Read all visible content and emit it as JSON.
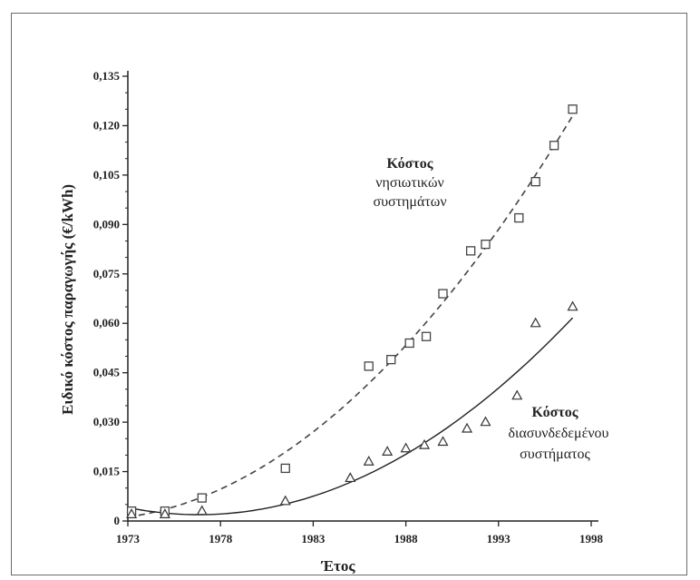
{
  "chart_data": {
    "type": "scatter",
    "xlabel": "Έτος",
    "ylabel": "Ειδικό κόστος παραγωγής (€/kWh)",
    "xlim": [
      1973,
      1998
    ],
    "ylim": [
      0,
      0.135
    ],
    "x_ticks": [
      "1973",
      "1978",
      "1983",
      "1988",
      "1993",
      "1998"
    ],
    "y_ticks": [
      "0",
      "0,015",
      "0,030",
      "0,045",
      "0,060",
      "0,075",
      "0,090",
      "0,105",
      "0,120",
      "0,135"
    ],
    "series": [
      {
        "marker": "square",
        "fit": "dashed",
        "x": [
          1973.2,
          1975,
          1977,
          1981.5,
          1986,
          1987.2,
          1988.2,
          1989.1,
          1990,
          1991.5,
          1992.3,
          1994.1,
          1995,
          1996,
          1997
        ],
        "y": [
          0.003,
          0.003,
          0.007,
          0.016,
          0.047,
          0.049,
          0.054,
          0.056,
          0.069,
          0.082,
          0.084,
          0.092,
          0.103,
          0.114,
          0.125
        ]
      },
      {
        "marker": "triangle",
        "fit": "solid",
        "x": [
          1973.2,
          1975,
          1977,
          1981.5,
          1985,
          1986,
          1987,
          1988,
          1989,
          1990,
          1991.3,
          1992.3,
          1994,
          1995,
          1997
        ],
        "y": [
          0.002,
          0.002,
          0.003,
          0.006,
          0.013,
          0.018,
          0.021,
          0.022,
          0.023,
          0.024,
          0.028,
          0.03,
          0.038,
          0.06,
          0.065
        ]
      }
    ],
    "annotations": [
      {
        "lines": [
          "Κόστος",
          "νησιωτικών",
          "συστημάτων"
        ]
      },
      {
        "lines": [
          "Κόστος",
          "διασυνδεδεμένου",
          "συστήματος"
        ]
      }
    ]
  }
}
